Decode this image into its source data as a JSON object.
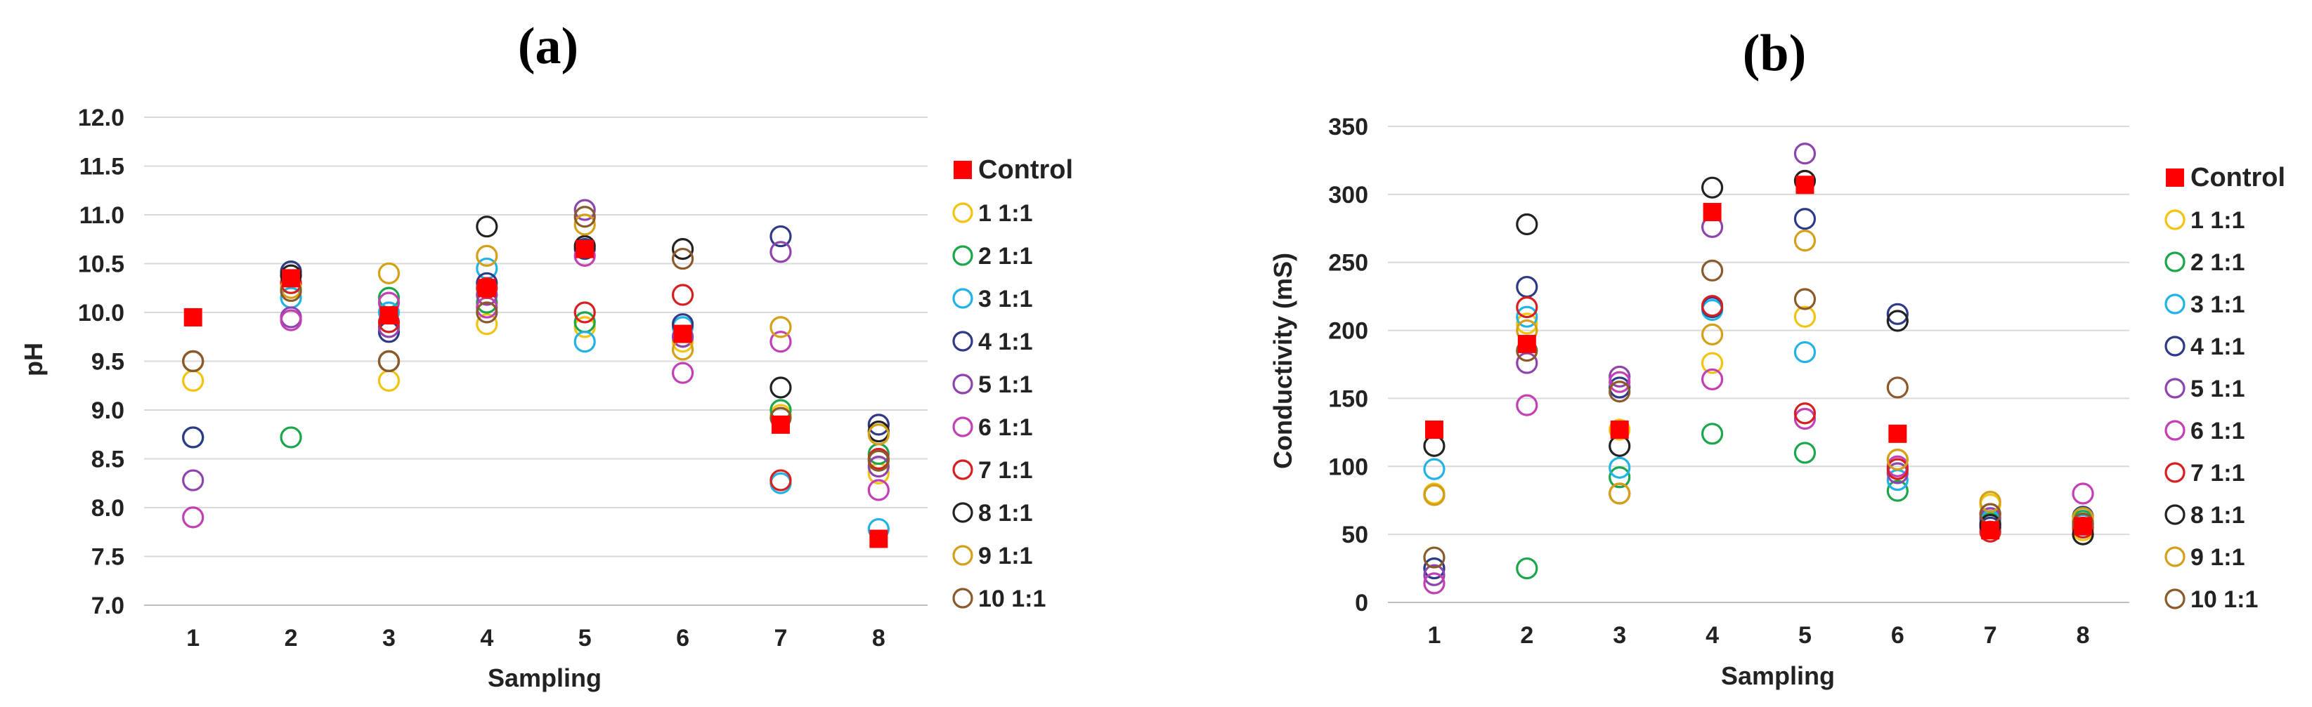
{
  "chart_data": [
    {
      "type": "scatter",
      "panel_label": "(a)",
      "xlabel": "Sampling",
      "ylabel": "pH",
      "x_categories": [
        "1",
        "2",
        "3",
        "4",
        "5",
        "6",
        "7",
        "8"
      ],
      "ylim": [
        7.0,
        12.0
      ],
      "yticks": [
        "7.0",
        "7.5",
        "8.0",
        "8.5",
        "9.0",
        "9.5",
        "10.0",
        "10.5",
        "11.0",
        "11.5",
        "12.0"
      ],
      "grid": true,
      "legend_position": "right",
      "series": [
        {
          "name": "Control",
          "marker": "filled-square",
          "color": "#ff0000",
          "values": [
            9.95,
            10.35,
            9.97,
            10.25,
            10.65,
            9.78,
            8.85,
            7.68
          ]
        },
        {
          "name": "1 1:1",
          "marker": "open-circle",
          "color": "#f2c40f",
          "values": [
            9.3,
            10.3,
            9.3,
            9.88,
            9.85,
            9.7,
            8.95,
            8.35
          ]
        },
        {
          "name": "2 1:1",
          "marker": "open-circle",
          "color": "#1aa64a",
          "values": [
            8.72,
            8.72,
            10.15,
            10.1,
            9.9,
            9.75,
            9.0,
            8.55
          ]
        },
        {
          "name": "3 1:1",
          "marker": "open-circle",
          "color": "#22b3e6",
          "values": [
            8.72,
            10.15,
            10.0,
            10.45,
            9.7,
            9.85,
            8.25,
            7.78
          ]
        },
        {
          "name": "4 1:1",
          "marker": "open-circle",
          "color": "#2e3a87",
          "values": [
            8.72,
            10.42,
            9.8,
            10.3,
            10.65,
            9.88,
            10.78,
            8.85
          ]
        },
        {
          "name": "5 1:1",
          "marker": "open-circle",
          "color": "#8e44ad",
          "values": [
            8.28,
            9.95,
            9.85,
            10.18,
            11.05,
            9.75,
            10.62,
            8.42
          ]
        },
        {
          "name": "6 1:1",
          "marker": "open-circle",
          "color": "#c33fb5",
          "values": [
            7.9,
            9.92,
            10.1,
            10.05,
            10.58,
            9.38,
            9.7,
            8.18
          ]
        },
        {
          "name": "7 1:1",
          "marker": "open-circle",
          "color": "#d62020",
          "values": [
            9.5,
            10.3,
            9.9,
            10.25,
            10.0,
            10.18,
            8.28,
            8.5
          ]
        },
        {
          "name": "8 1:1",
          "marker": "open-circle",
          "color": "#222222",
          "values": [
            9.5,
            10.38,
            9.5,
            10.88,
            10.68,
            10.65,
            9.23,
            8.78
          ]
        },
        {
          "name": "9 1:1",
          "marker": "open-circle",
          "color": "#d4a017",
          "values": [
            9.5,
            10.25,
            10.4,
            10.58,
            10.9,
            9.62,
            9.85,
            8.75
          ]
        },
        {
          "name": "10 1:1",
          "marker": "open-circle",
          "color": "#8b5a2b",
          "values": [
            9.5,
            10.22,
            9.5,
            10.0,
            10.98,
            10.55,
            8.92,
            8.48
          ]
        }
      ]
    },
    {
      "type": "scatter",
      "panel_label": "(b)",
      "xlabel": "Sampling",
      "ylabel": "Conductivity (mS)",
      "x_categories": [
        "1",
        "2",
        "3",
        "4",
        "5",
        "6",
        "7",
        "8"
      ],
      "ylim": [
        0,
        350
      ],
      "yticks": [
        "0",
        "50",
        "100",
        "150",
        "200",
        "250",
        "300",
        "350"
      ],
      "grid": true,
      "legend_position": "right",
      "series": [
        {
          "name": "Control",
          "marker": "filled-square",
          "color": "#ff0000",
          "values": [
            127,
            190,
            127,
            287,
            307,
            124,
            53,
            56
          ]
        },
        {
          "name": "1 1:1",
          "marker": "open-circle",
          "color": "#f2c40f",
          "values": [
            80,
            205,
            127,
            176,
            210,
            105,
            72,
            53
          ]
        },
        {
          "name": "2 1:1",
          "marker": "open-circle",
          "color": "#1aa64a",
          "values": [
            25,
            25,
            92,
            124,
            110,
            82,
            58,
            60
          ]
        },
        {
          "name": "3 1:1",
          "marker": "open-circle",
          "color": "#22b3e6",
          "values": [
            98,
            210,
            99,
            215,
            184,
            90,
            60,
            57
          ]
        },
        {
          "name": "4 1:1",
          "marker": "open-circle",
          "color": "#2e3a87",
          "values": [
            25,
            232,
            158,
            217,
            282,
            212,
            55,
            63
          ]
        },
        {
          "name": "5 1:1",
          "marker": "open-circle",
          "color": "#8e44ad",
          "values": [
            20,
            176,
            166,
            276,
            330,
            95,
            62,
            58
          ]
        },
        {
          "name": "6 1:1",
          "marker": "open-circle",
          "color": "#c33fb5",
          "values": [
            14,
            145,
            162,
            164,
            135,
            100,
            65,
            80
          ]
        },
        {
          "name": "7 1:1",
          "marker": "open-circle",
          "color": "#d62020",
          "values": [
            79,
            217,
            80,
            218,
            139,
            98,
            52,
            55
          ]
        },
        {
          "name": "8 1:1",
          "marker": "open-circle",
          "color": "#222222",
          "values": [
            115,
            278,
            115,
            305,
            310,
            207,
            57,
            50
          ]
        },
        {
          "name": "9 1:1",
          "marker": "open-circle",
          "color": "#d4a017",
          "values": [
            79,
            200,
            80,
            197,
            266,
            105,
            74,
            62
          ]
        },
        {
          "name": "10 1:1",
          "marker": "open-circle",
          "color": "#8b5a2b",
          "values": [
            33,
            185,
            155,
            244,
            223,
            158,
            65,
            58
          ]
        }
      ]
    }
  ]
}
